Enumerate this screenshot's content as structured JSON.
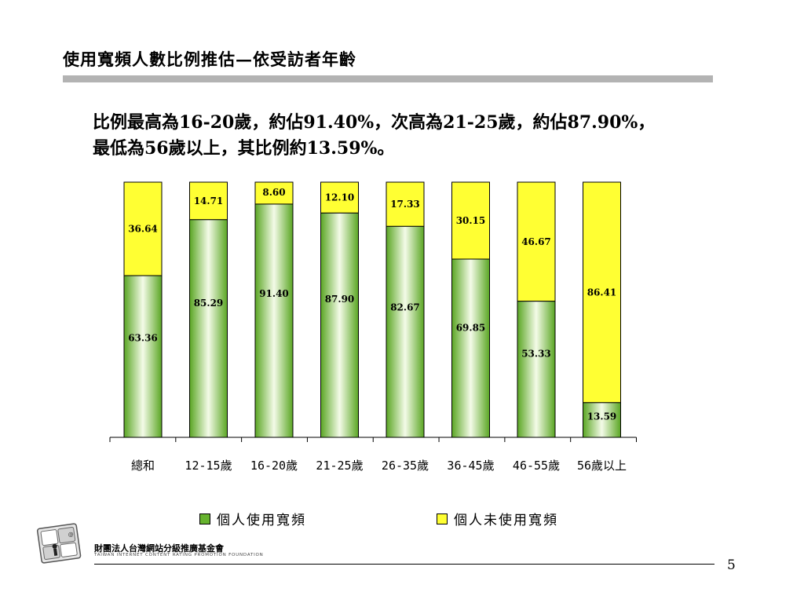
{
  "slide": {
    "title": "使用寬頻人數比例推估—依受訪者年齡",
    "summary_line1": "比例最高為16-20歲，約佔91.40%，次高為21-25歲，約佔87.90%，",
    "summary_line2": "最低為56歲以上，其比例約13.59%。",
    "page_number": "5"
  },
  "footer": {
    "org_name": "財團法人台灣網站分級推廣基金會",
    "org_name_en": "TAIWAN INTERNET CONTENT RATING PROMOTION FOUNDATION",
    "logo_icon": "icrt-logo-icon"
  },
  "legend": {
    "items": [
      {
        "label": "個人使用寬頻",
        "color": "#66b32e"
      },
      {
        "label": "個人未使用寬頻",
        "color": "#ffff33"
      }
    ]
  },
  "chart_data": {
    "type": "bar",
    "stacked": true,
    "categories": [
      "總和",
      "12-15歲",
      "16-20歲",
      "21-25歲",
      "26-35歲",
      "36-45歲",
      "46-55歲",
      "56歲以上"
    ],
    "series": [
      {
        "name": "個人使用寬頻",
        "values": [
          63.36,
          85.29,
          91.4,
          87.9,
          82.67,
          69.85,
          53.33,
          13.59
        ],
        "color": "#66b32e"
      },
      {
        "name": "個人未使用寬頻",
        "values": [
          36.64,
          14.71,
          8.6,
          12.1,
          17.33,
          30.15,
          46.67,
          86.41
        ],
        "color": "#ffff33"
      }
    ],
    "value_labels": {
      "used": [
        "63.36",
        "85.29",
        "91.40",
        "87.90",
        "82.67",
        "69.85",
        "53.33",
        "13.59"
      ],
      "unused": [
        "36.64",
        "14.71",
        "8.60",
        "12.10",
        "17.33",
        "30.15",
        "46.67",
        "86.41"
      ]
    },
    "ylim": [
      0,
      100
    ],
    "grid": false,
    "legend_position": "bottom"
  }
}
